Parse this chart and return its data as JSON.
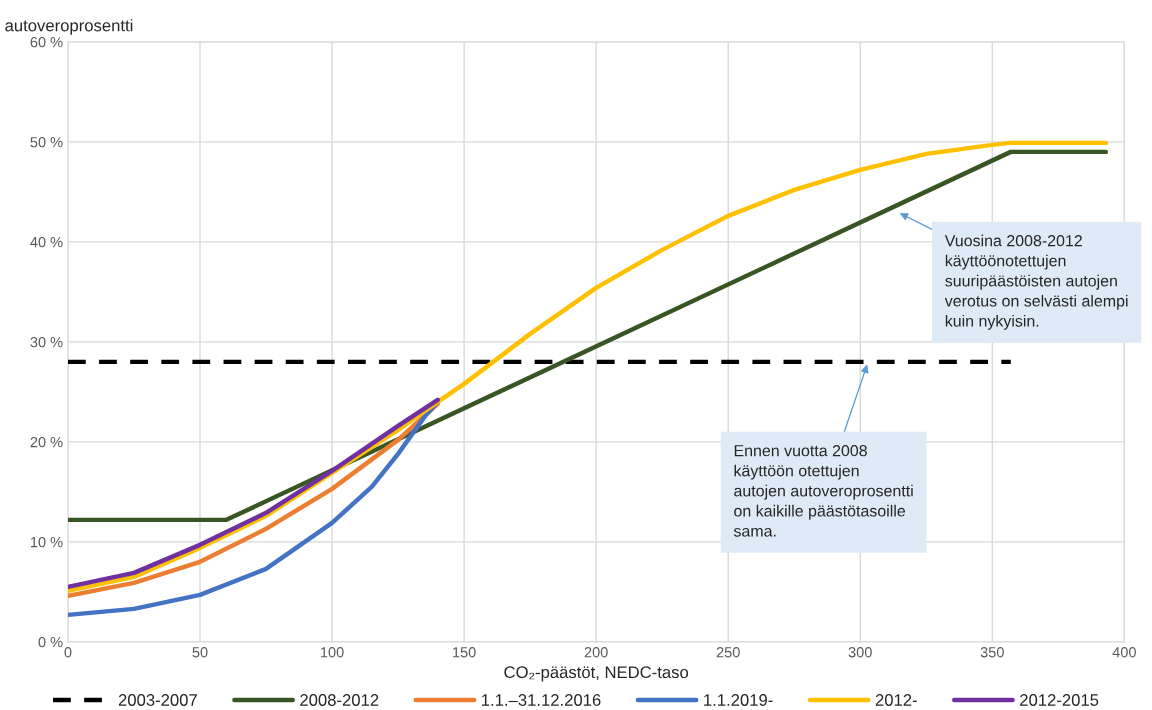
{
  "chart_data": {
    "type": "line",
    "ylabel": "autoveroprosentti",
    "xlabel": "CO₂-päästöt, NEDC-taso",
    "xlim": [
      0,
      400
    ],
    "xticks": [
      0,
      50,
      100,
      150,
      200,
      250,
      300,
      350,
      400
    ],
    "ylim": [
      0,
      60
    ],
    "yticks": [
      {
        "value": 0,
        "label": "0 %"
      },
      {
        "value": 10,
        "label": "10 %"
      },
      {
        "value": 20,
        "label": "20 %"
      },
      {
        "value": 30,
        "label": "30 %"
      },
      {
        "value": 40,
        "label": "40 %"
      },
      {
        "value": 50,
        "label": "50 %"
      },
      {
        "value": 60,
        "label": "60 %"
      }
    ],
    "grid": true,
    "legend": "bottom",
    "series": [
      {
        "name": "2003-2007",
        "color": "#000000",
        "line_style": "dashed",
        "x": [
          0,
          357
        ],
        "values": [
          28,
          28
        ]
      },
      {
        "name": "2008-2012",
        "color": "#375623",
        "x": [
          0,
          60,
          357,
          393
        ],
        "values": [
          12.2,
          12.2,
          49,
          49
        ]
      },
      {
        "name": "1.1.–31.12.2016",
        "color": "#ed7d31",
        "x": [
          0,
          25,
          50,
          75,
          100,
          125,
          140
        ],
        "values": [
          4.6,
          5.9,
          8.0,
          11.3,
          15.3,
          20.2,
          23.8
        ]
      },
      {
        "name": "1.1.2019-",
        "color": "#4472c4",
        "x": [
          0,
          25,
          50,
          75,
          100,
          115,
          125,
          135,
          140
        ],
        "values": [
          2.7,
          3.3,
          4.7,
          7.3,
          11.9,
          15.5,
          18.8,
          22.5,
          24
        ]
      },
      {
        "name": "2012-",
        "color": "#ffc000",
        "x": [
          0,
          25,
          50,
          75,
          100,
          125,
          140,
          150,
          175,
          200,
          225,
          250,
          275,
          300,
          325,
          350,
          357,
          393
        ],
        "values": [
          5.1,
          6.5,
          9.4,
          12.6,
          16.9,
          21.2,
          24,
          25.8,
          30.8,
          35.4,
          39.2,
          42.6,
          45.2,
          47.2,
          48.8,
          49.7,
          49.9,
          49.9
        ]
      },
      {
        "name": "2012-2015",
        "color": "#7030a0",
        "x": [
          0,
          25,
          50,
          75,
          100,
          125,
          140
        ],
        "values": [
          5.5,
          6.9,
          9.7,
          12.9,
          17.1,
          21.6,
          24.2
        ]
      }
    ],
    "annotations": [
      {
        "text": "Vuosina 2008-2012\nkäyttöönotettujen\nsuuripäästöisten autojen\nverotus on selvästi alempi\nkuin nykyisin.",
        "x": 314,
        "y": 43
      },
      {
        "text": "Ennen vuotta 2008\nkäyttöön otettujen\nautojen autoveroprosentti\non kaikille päästötasoille\nsama.",
        "x": 303,
        "y": 28
      }
    ]
  }
}
